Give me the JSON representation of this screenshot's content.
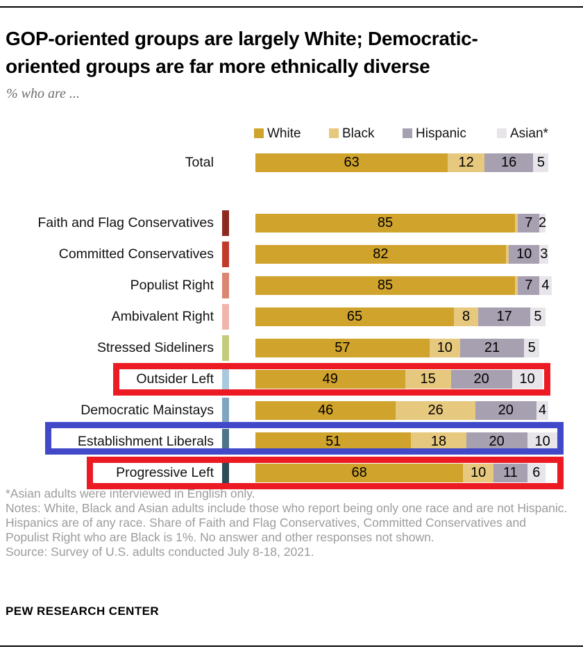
{
  "header": {
    "title_line1": "GOP-oriented groups are largely White; Democratic-",
    "title_line2": "oriented groups are far more ethnically diverse",
    "subtitle": "% who are ..."
  },
  "colors": {
    "series": {
      "White": "#CFA32C",
      "Black": "#E6C87E",
      "Hispanic": "#A7A0B0",
      "Asian": "#E7E5EA"
    },
    "highlight_red": "#EC1B23",
    "highlight_blue": "#4149C9",
    "notes_gray": "#9C9C9C"
  },
  "legend": {
    "items": [
      {
        "label": "White",
        "series": "White"
      },
      {
        "label": "Black",
        "series": "Black"
      },
      {
        "label": "Hispanic",
        "series": "Hispanic"
      },
      {
        "label": "Asian*",
        "series": "Asian"
      }
    ]
  },
  "chart_data": {
    "type": "bar",
    "orientation": "horizontal",
    "stacked": true,
    "unit": "percent",
    "axis_range": [
      0,
      100
    ],
    "series": [
      "White",
      "Black",
      "Hispanic",
      "Asian"
    ],
    "rows": [
      {
        "label": "Total",
        "is_total": true,
        "group_color": null,
        "values": {
          "White": 63,
          "Black": 12,
          "Hispanic": 16,
          "Asian": 5
        }
      },
      {
        "label": "Faith and Flag Conservatives",
        "group_color": "#8C2A20",
        "values": {
          "White": 85,
          "Black": 1,
          "Hispanic": 7,
          "Asian": 2
        },
        "unlabeled": [
          "Black"
        ]
      },
      {
        "label": "Committed Conservatives",
        "group_color": "#C13B2A",
        "values": {
          "White": 82,
          "Black": 1,
          "Hispanic": 10,
          "Asian": 3
        },
        "unlabeled": [
          "Black"
        ]
      },
      {
        "label": "Populist Right",
        "group_color": "#DB8573",
        "values": {
          "White": 85,
          "Black": 1,
          "Hispanic": 7,
          "Asian": 4
        },
        "unlabeled": [
          "Black"
        ]
      },
      {
        "label": "Ambivalent Right",
        "group_color": "#EFB6AC",
        "values": {
          "White": 65,
          "Black": 8,
          "Hispanic": 17,
          "Asian": 5
        }
      },
      {
        "label": "Stressed Sideliners",
        "group_color": "#C5CB7E",
        "values": {
          "White": 57,
          "Black": 10,
          "Hispanic": 21,
          "Asian": 5
        }
      },
      {
        "label": "Outsider Left",
        "group_color": "#A9C9DC",
        "highlight": "red",
        "values": {
          "White": 49,
          "Black": 15,
          "Hispanic": 20,
          "Asian": 10
        }
      },
      {
        "label": "Democratic Mainstays",
        "group_color": "#7FA5C1",
        "values": {
          "White": 46,
          "Black": 26,
          "Hispanic": 20,
          "Asian": 4
        }
      },
      {
        "label": "Establishment Liberals",
        "group_color": "#4E7487",
        "highlight": "blue",
        "values": {
          "White": 51,
          "Black": 18,
          "Hispanic": 20,
          "Asian": 10
        }
      },
      {
        "label": "Progressive Left",
        "group_color": "#2E4B58",
        "highlight": "red",
        "values": {
          "White": 68,
          "Black": 10,
          "Hispanic": 11,
          "Asian": 6
        }
      }
    ]
  },
  "footer": {
    "footnote": "*Asian adults were interviewed in English only.",
    "notes": "Notes: White, Black and Asian adults include those who report being only one race and are not Hispanic. Hispanics are of any race. Share of Faith and Flag Conservatives, Committed Conservatives and Populist Right who are Black is 1%. No answer and other responses not shown.",
    "source": "Source: Survey of U.S. adults conducted July 8-18, 2021.",
    "brand": "PEW RESEARCH CENTER"
  }
}
